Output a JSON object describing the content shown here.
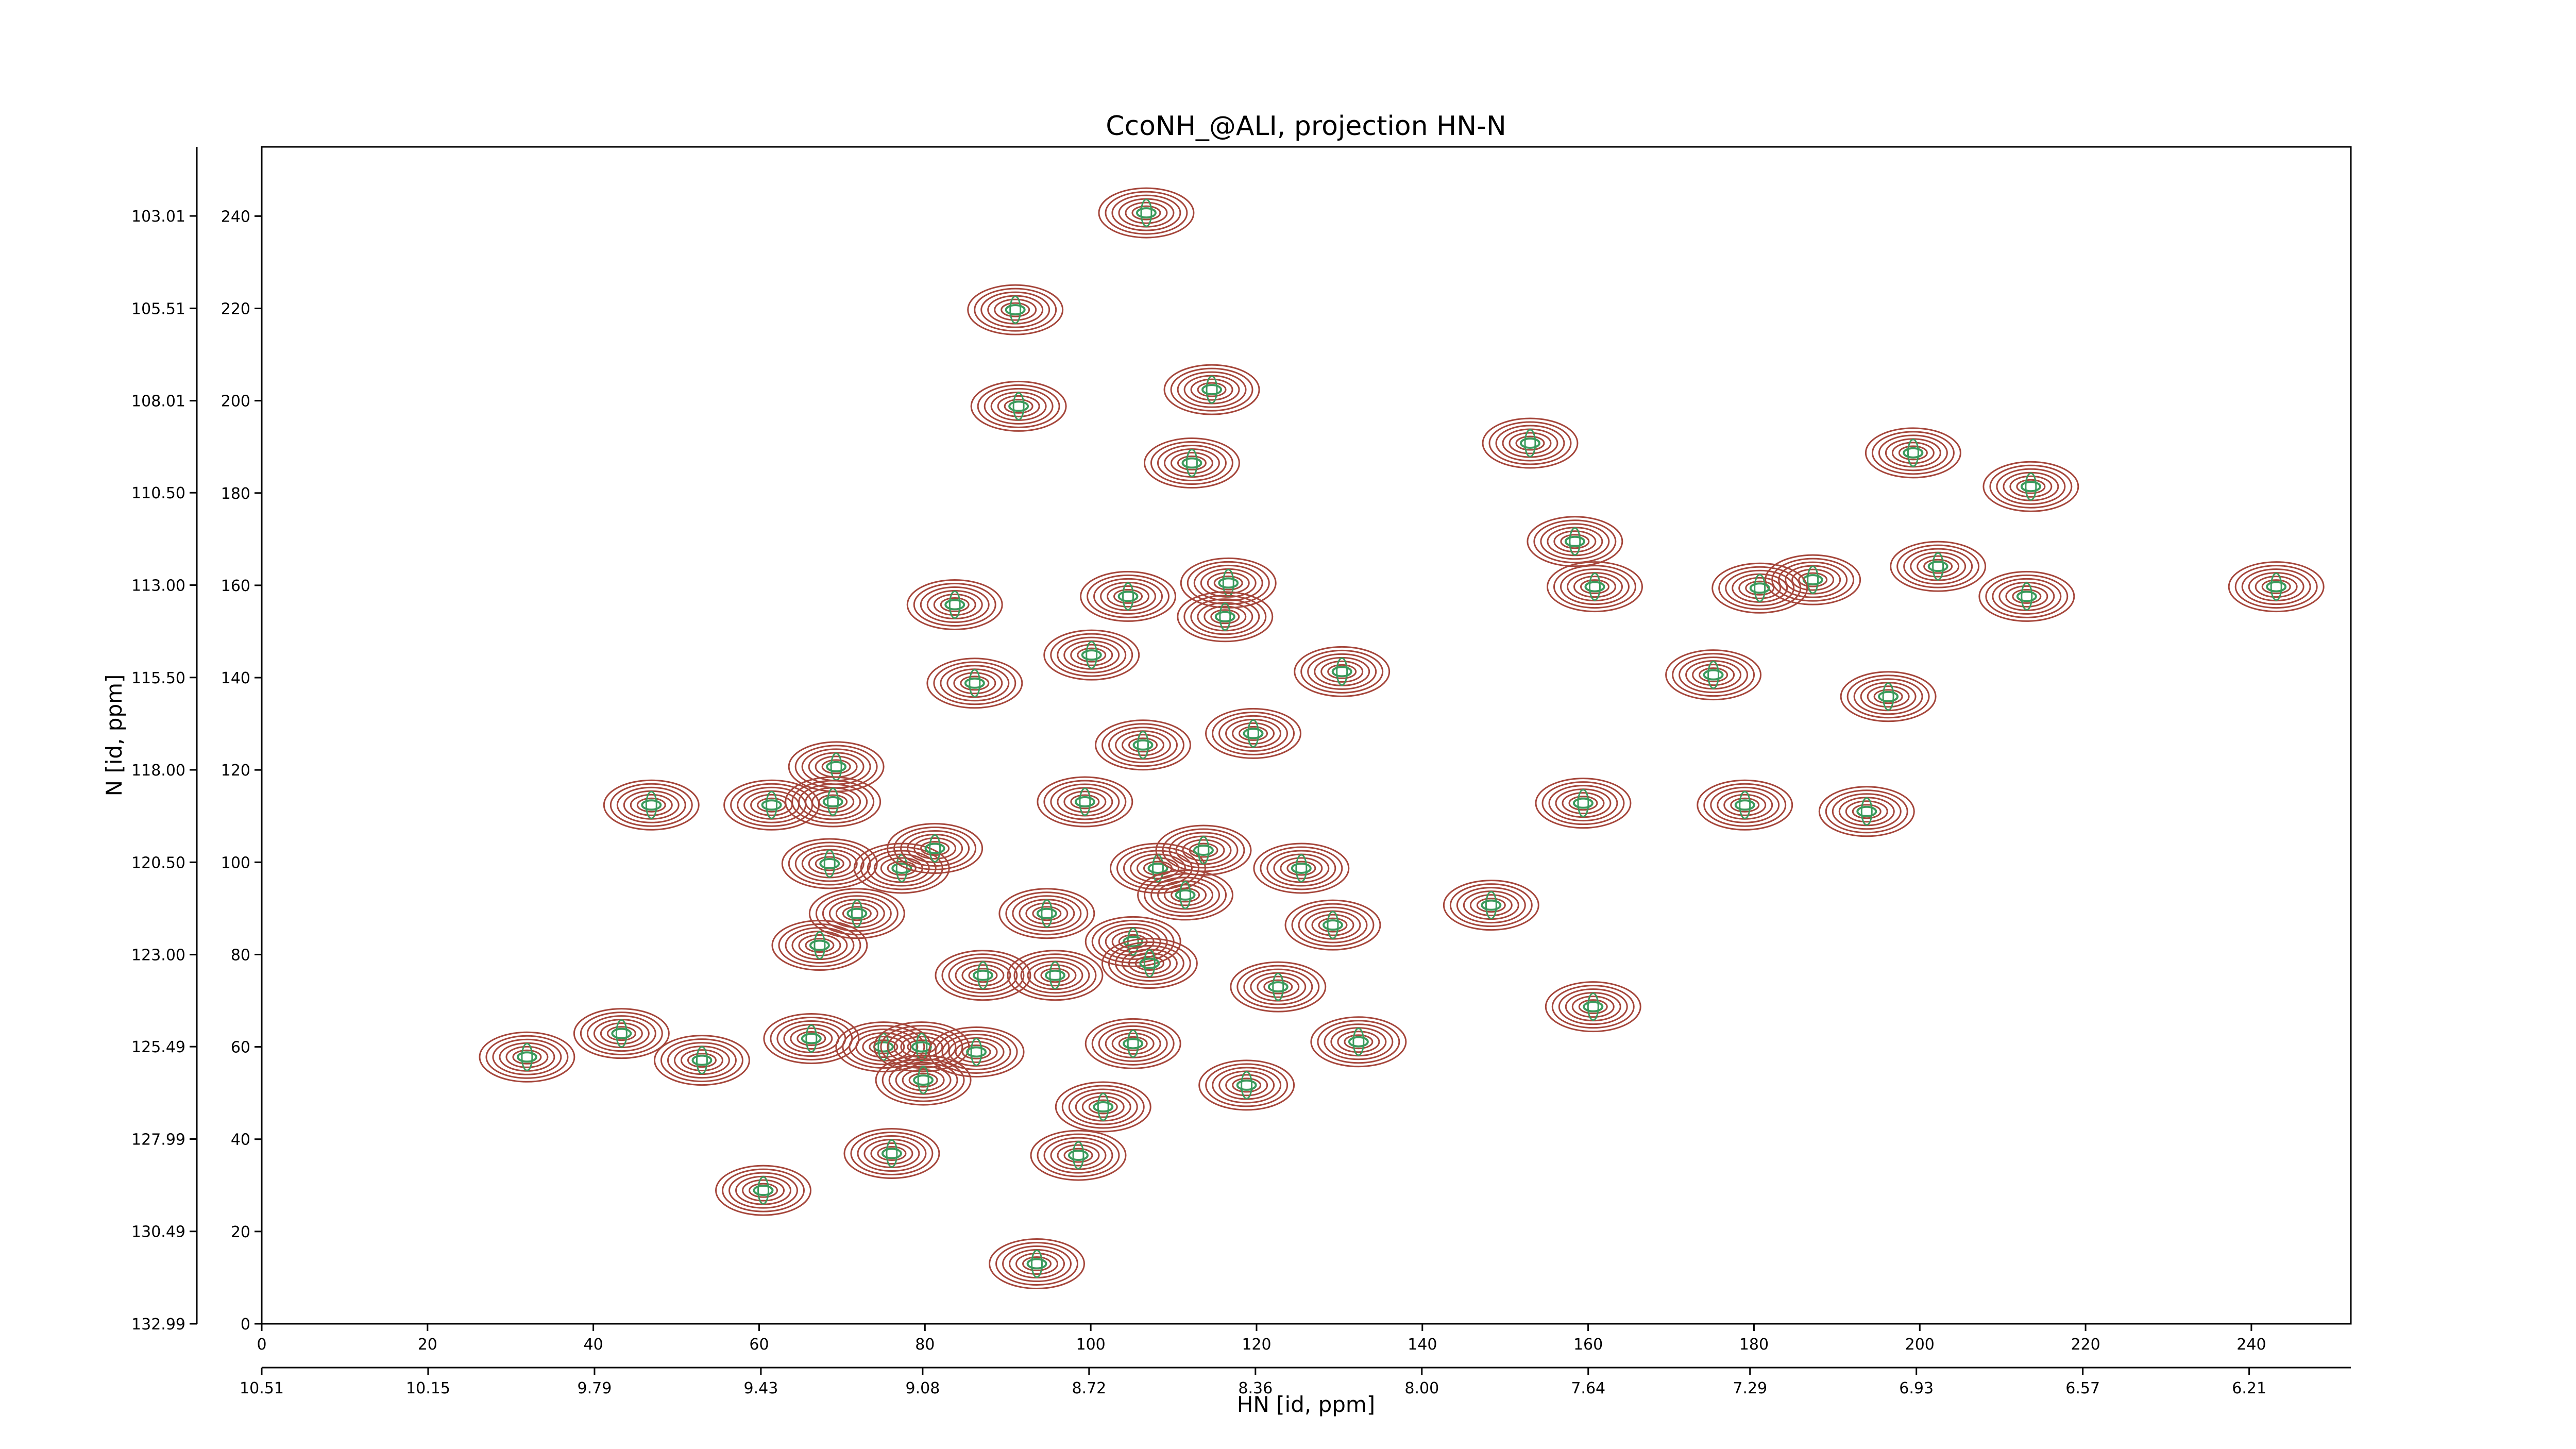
{
  "chart_data": {
    "type": "contour",
    "title": "CcoNH_@ALI, projection HN-N",
    "xlabel": "HN [id, ppm]",
    "ylabel": "N [id, ppm]",
    "xlim": [
      0,
      252
    ],
    "ylim": [
      0,
      255
    ],
    "xticks": [
      0,
      20,
      40,
      60,
      80,
      100,
      120,
      140,
      160,
      180,
      200,
      220,
      240
    ],
    "yticks": [
      0,
      20,
      40,
      60,
      80,
      100,
      120,
      140,
      160,
      180,
      200,
      220,
      240
    ],
    "x2lim": [
      10.51,
      5.99
    ],
    "x2ticks": [
      10.51,
      10.15,
      9.79,
      9.43,
      9.08,
      8.72,
      8.36,
      {
        "value": 8,
        "label": "8.00"
      },
      7.64,
      7.29,
      6.93,
      6.57,
      6.21
    ],
    "y2lim": [
      132.99,
      101.14
    ],
    "y2ticks": [
      132.99,
      130.49,
      127.99,
      125.49,
      {
        "value": 123,
        "label": "123.00"
      },
      {
        "value": 120.5,
        "label": "120.50"
      },
      {
        "value": 118,
        "label": "118.00"
      },
      {
        "value": 115.5,
        "label": "115.50"
      },
      {
        "value": 113,
        "label": "113.00"
      },
      {
        "value": 110.5,
        "label": "110.50"
      },
      108.01,
      105.51,
      103.01
    ],
    "color": "#a5463b",
    "center_color": "#3a9a5c",
    "x": [
      106.7,
      90.9,
      91.3,
      114.6,
      112.2,
      153,
      199.2,
      213.4,
      160.8,
      158.4,
      202.2,
      243,
      187.1,
      180.7,
      212.9,
      104.5,
      116.6,
      116.2,
      83.6,
      100.1,
      86,
      130.3,
      196.2,
      175.1,
      106.3,
      119.6,
      69.3,
      61.5,
      68.9,
      47,
      99.3,
      178.9,
      193.6,
      159.4,
      68.5,
      77.2,
      81.2,
      108.1,
      113.6,
      125.4,
      111.4,
      71.8,
      148.3,
      129.2,
      94.7,
      67.3,
      105.1,
      87,
      95.7,
      107.1,
      122.6,
      160.6,
      43.4,
      53.1,
      66.3,
      75,
      79.6,
      86.2,
      105.1,
      132.3,
      79.8,
      118.8,
      101.5,
      76,
      98.5,
      60.5,
      93.5,
      32
    ],
    "y": [
      240.7,
      219.7,
      198.8,
      202.4,
      186.5,
      190.8,
      188.7,
      181.4,
      159.7,
      169.5,
      164.1,
      159.7,
      161.2,
      159.4,
      157.6,
      157.6,
      160.5,
      153.2,
      155.8,
      144.9,
      138.8,
      141.3,
      135.9,
      140.6,
      125.4,
      127.9,
      120.7,
      112.4,
      113.1,
      112.4,
      113.1,
      112.4,
      111,
      112.8,
      99.7,
      98.7,
      103,
      98.7,
      102.6,
      98.7,
      92.9,
      88.9,
      90.7,
      86.4,
      88.9,
      82,
      82.8,
      75.5,
      75.5,
      78.1,
      73,
      68.7,
      62.9,
      57.1,
      61.8,
      60,
      60,
      58.9,
      60.7,
      61.1,
      52.8,
      51.7,
      47,
      36.9,
      36.5,
      28.9,
      13,
      57.8
    ]
  }
}
